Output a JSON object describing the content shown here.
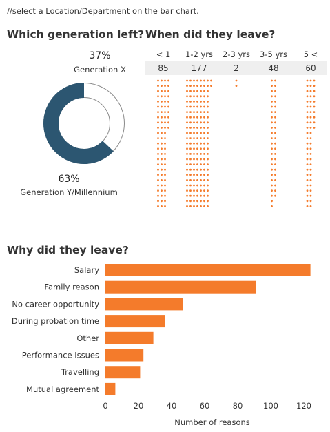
{
  "note": "//select a Location/Department on the bar chart.",
  "generation": {
    "title": "Which generation left?",
    "segments": [
      {
        "pct_label": "37%",
        "label": "Generation X",
        "share": 0.37,
        "color": "#ffffff"
      },
      {
        "pct_label": "63%",
        "label": "Generation Y/Millennium",
        "share": 0.63,
        "color": "#2c5671"
      }
    ]
  },
  "tenure": {
    "title": "When did they leave?",
    "dot_color": "#f47b2b",
    "groups": [
      {
        "label": "< 1",
        "count": "85",
        "value": 85
      },
      {
        "label": "1-2 yrs",
        "count": "177",
        "value": 177
      },
      {
        "label": "2-3 yrs",
        "count": "2",
        "value": 2
      },
      {
        "label": "3-5 yrs",
        "count": "48",
        "value": 48
      },
      {
        "label": "5 <",
        "count": "60",
        "value": 60
      }
    ]
  },
  "reasons": {
    "title": "Why did they leave?"
  },
  "chart_data": {
    "type": "bar",
    "orientation": "horizontal",
    "categories": [
      "Salary",
      "Family reason",
      "No career opportunity",
      "During probation time",
      "Other",
      "Performance Issues",
      "Travelling",
      "Mutual agreement"
    ],
    "values": [
      124,
      91,
      47,
      36,
      29,
      23,
      21,
      6
    ],
    "xlabel": "Number of reasons",
    "ylabel": "",
    "xlim": [
      0,
      130
    ],
    "xticks": [
      0,
      20,
      40,
      60,
      80,
      100,
      120
    ],
    "color": "#f47b2b",
    "grid": false
  }
}
